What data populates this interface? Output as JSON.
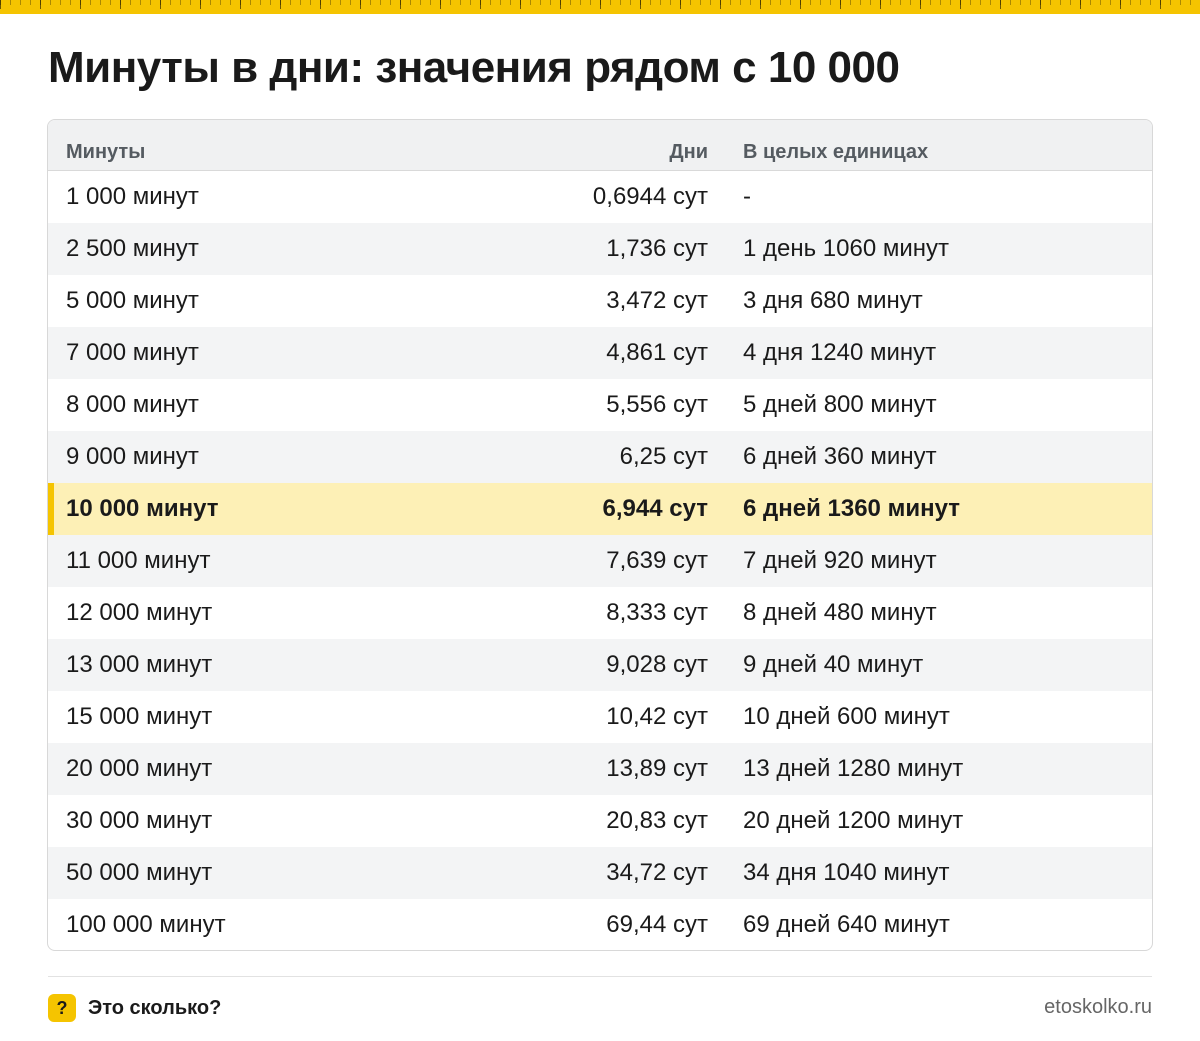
{
  "title": "Минуты в дни: значения рядом с 10 000",
  "accent_color": "#f5c400",
  "highlight_color": "#fdf0b6",
  "table": {
    "headers": [
      "Минуты",
      "Дни",
      "В целых единицах"
    ],
    "rows": [
      {
        "minutes": "1 000 минут",
        "days": "0,6944 сут",
        "whole": "-"
      },
      {
        "minutes": "2 500 минут",
        "days": "1,736 сут",
        "whole": "1 день 1060 минут"
      },
      {
        "minutes": "5 000 минут",
        "days": "3,472 сут",
        "whole": "3 дня 680 минут"
      },
      {
        "minutes": "7 000 минут",
        "days": "4,861 сут",
        "whole": "4 дня 1240 минут"
      },
      {
        "minutes": "8 000 минут",
        "days": "5,556 сут",
        "whole": "5 дней 800 минут"
      },
      {
        "minutes": "9 000 минут",
        "days": "6,25 сут",
        "whole": "6 дней 360 минут"
      },
      {
        "minutes": "10 000 минут",
        "days": "6,944 сут",
        "whole": "6 дней 1360 минут",
        "highlight": true
      },
      {
        "minutes": "11 000 минут",
        "days": "7,639 сут",
        "whole": "7 дней 920 минут"
      },
      {
        "minutes": "12 000 минут",
        "days": "8,333 сут",
        "whole": "8 дней 480 минут"
      },
      {
        "minutes": "13 000 минут",
        "days": "9,028 сут",
        "whole": "9 дней 40 минут"
      },
      {
        "minutes": "15 000 минут",
        "days": "10,42 сут",
        "whole": "10 дней 600 минут"
      },
      {
        "minutes": "20 000 минут",
        "days": "13,89 сут",
        "whole": "13 дней 1280 минут"
      },
      {
        "minutes": "30 000 минут",
        "days": "20,83 сут",
        "whole": "20 дней 1200 минут"
      },
      {
        "minutes": "50 000 минут",
        "days": "34,72 сут",
        "whole": "34 дня 1040 минут"
      },
      {
        "minutes": "100 000 минут",
        "days": "69,44 сут",
        "whole": "69 дней 640 минут"
      }
    ]
  },
  "footer": {
    "icon_symbol": "?",
    "icon_name": "question-mark-icon",
    "brand": "Это сколько?",
    "site": "etoskolko.ru"
  }
}
